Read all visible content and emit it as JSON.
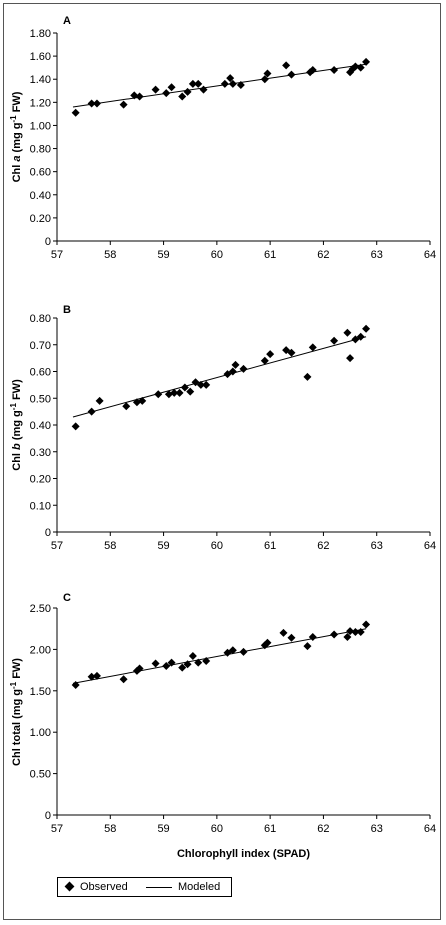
{
  "chart_data": [
    {
      "type": "scatter",
      "panel_label": "A",
      "ylabel_parts": [
        "Chl ",
        "a",
        " (mg g",
        "-1",
        " FW)"
      ],
      "xlim": [
        57,
        64
      ],
      "ylim": [
        0,
        1.8
      ],
      "xticks": [
        "57",
        "58",
        "59",
        "60",
        "61",
        "62",
        "63",
        "64"
      ],
      "yticks": [
        "0",
        "0.20",
        "0.40",
        "0.60",
        "0.80",
        "1.00",
        "1.20",
        "1.40",
        "1.60",
        "1.80"
      ],
      "series": [
        {
          "name": "Observed",
          "x": [
            57.35,
            57.65,
            57.75,
            58.25,
            58.45,
            58.55,
            58.85,
            59.05,
            59.15,
            59.35,
            59.45,
            59.55,
            59.65,
            59.75,
            60.15,
            60.25,
            60.3,
            60.45,
            60.9,
            60.95,
            61.3,
            61.4,
            61.75,
            61.8,
            62.2,
            62.5,
            62.55,
            62.6,
            62.7,
            62.8
          ],
          "y": [
            1.11,
            1.19,
            1.19,
            1.18,
            1.26,
            1.25,
            1.31,
            1.28,
            1.33,
            1.25,
            1.29,
            1.36,
            1.36,
            1.31,
            1.36,
            1.41,
            1.36,
            1.35,
            1.4,
            1.45,
            1.52,
            1.44,
            1.46,
            1.48,
            1.48,
            1.46,
            1.49,
            1.51,
            1.5,
            1.55
          ]
        },
        {
          "name": "Modeled",
          "x": [
            57.3,
            62.8
          ],
          "y": [
            1.16,
            1.53
          ]
        }
      ]
    },
    {
      "type": "scatter",
      "panel_label": "B",
      "ylabel_parts": [
        "Chl ",
        "b",
        " (mg g",
        "-1",
        " FW)"
      ],
      "xlim": [
        57,
        64
      ],
      "ylim": [
        0,
        0.8
      ],
      "xticks": [
        "57",
        "58",
        "59",
        "60",
        "61",
        "62",
        "63",
        "64"
      ],
      "yticks": [
        "0",
        "0.10",
        "0.20",
        "0.30",
        "0.40",
        "0.50",
        "0.60",
        "0.70",
        "0.80"
      ],
      "series": [
        {
          "name": "Observed",
          "x": [
            57.35,
            57.65,
            57.8,
            58.3,
            58.5,
            58.6,
            58.9,
            59.1,
            59.2,
            59.3,
            59.4,
            59.5,
            59.6,
            59.7,
            59.8,
            60.2,
            60.3,
            60.35,
            60.5,
            60.9,
            61.0,
            61.3,
            61.4,
            61.7,
            61.8,
            62.2,
            62.45,
            62.5,
            62.6,
            62.7,
            62.8
          ],
          "y": [
            0.395,
            0.45,
            0.49,
            0.47,
            0.485,
            0.49,
            0.515,
            0.515,
            0.52,
            0.52,
            0.54,
            0.525,
            0.56,
            0.55,
            0.55,
            0.59,
            0.6,
            0.625,
            0.61,
            0.64,
            0.665,
            0.68,
            0.67,
            0.58,
            0.69,
            0.715,
            0.745,
            0.65,
            0.72,
            0.73,
            0.76
          ]
        },
        {
          "name": "Modeled",
          "x": [
            57.3,
            62.8
          ],
          "y": [
            0.43,
            0.73
          ]
        }
      ]
    },
    {
      "type": "scatter",
      "panel_label": "C",
      "ylabel_parts": [
        "Chl total (mg g",
        "-1",
        " FW)"
      ],
      "xlabel": "Chlorophyll index (SPAD)",
      "xlim": [
        57,
        64
      ],
      "ylim": [
        0,
        2.5
      ],
      "xticks": [
        "57",
        "58",
        "59",
        "60",
        "61",
        "62",
        "63",
        "64"
      ],
      "yticks": [
        "0",
        "0.50",
        "1.00",
        "1.50",
        "2.00",
        "2.50"
      ],
      "series": [
        {
          "name": "Observed",
          "x": [
            57.35,
            57.65,
            57.75,
            58.25,
            58.5,
            58.55,
            58.85,
            59.05,
            59.15,
            59.35,
            59.45,
            59.55,
            59.65,
            59.8,
            60.2,
            60.3,
            60.5,
            60.9,
            60.95,
            61.25,
            61.4,
            61.7,
            61.8,
            62.2,
            62.45,
            62.5,
            62.6,
            62.7,
            62.8
          ],
          "y": [
            1.57,
            1.67,
            1.68,
            1.64,
            1.74,
            1.77,
            1.83,
            1.8,
            1.84,
            1.78,
            1.82,
            1.92,
            1.84,
            1.86,
            1.96,
            1.99,
            1.97,
            2.05,
            2.08,
            2.2,
            2.14,
            2.04,
            2.15,
            2.18,
            2.15,
            2.22,
            2.21,
            2.21,
            2.3
          ]
        },
        {
          "name": "Modeled",
          "x": [
            57.3,
            62.8
          ],
          "y": [
            1.59,
            2.25
          ]
        }
      ]
    }
  ],
  "legend": {
    "observed": "Observed",
    "modeled": "Modeled"
  }
}
